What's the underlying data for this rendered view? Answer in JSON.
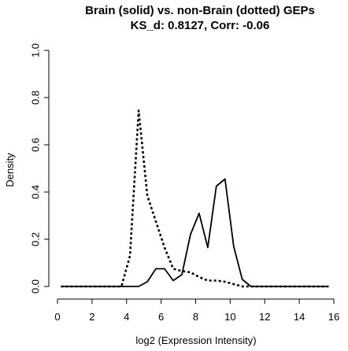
{
  "chart_data": {
    "type": "line",
    "title": "Brain (solid) vs. non-Brain (dotted) GEPs",
    "subtitle": "KS_d: 0.8127, Corr: -0.06",
    "xlabel": "log2 (Expression Intensity)",
    "ylabel": "Density",
    "xlim": [
      0,
      16
    ],
    "ylim": [
      0,
      1.0
    ],
    "x_ticks": [
      0,
      2,
      4,
      6,
      8,
      10,
      12,
      14,
      16
    ],
    "y_ticks": [
      0.0,
      0.2,
      0.4,
      0.6,
      0.8,
      1.0
    ],
    "x_tick_labels": [
      "0",
      "2",
      "4",
      "6",
      "8",
      "10",
      "12",
      "14",
      "16"
    ],
    "y_tick_labels": [
      "0.0",
      "0.2",
      "0.4",
      "0.6",
      "0.8",
      "1.0"
    ],
    "grid": false,
    "legend": null,
    "series": [
      {
        "style": "solid",
        "color": "#000000",
        "x": [
          0.2,
          0.7,
          1.2,
          1.7,
          2.2,
          2.7,
          3.2,
          3.7,
          4.2,
          4.7,
          5.2,
          5.7,
          6.2,
          6.7,
          7.2,
          7.7,
          8.2,
          8.7,
          9.2,
          9.7,
          10.2,
          10.7,
          11.2,
          11.7,
          12.2,
          12.7,
          13.2,
          13.7,
          14.2,
          14.7,
          15.2,
          15.7
        ],
        "y": [
          0.0,
          0.0,
          0.0,
          0.0,
          0.0,
          0.0,
          0.0,
          0.0,
          0.0,
          0.0,
          0.02,
          0.075,
          0.075,
          0.025,
          0.05,
          0.22,
          0.31,
          0.165,
          0.425,
          0.455,
          0.17,
          0.03,
          0.0,
          0.0,
          0.0,
          0.0,
          0.0,
          0.0,
          0.0,
          0.0,
          0.0,
          0.0
        ]
      },
      {
        "style": "dotted",
        "color": "#000000",
        "x": [
          0.2,
          0.7,
          1.2,
          1.7,
          2.2,
          2.7,
          3.2,
          3.7,
          4.2,
          4.7,
          5.2,
          5.7,
          6.2,
          6.7,
          7.2,
          7.7,
          8.2,
          8.7,
          9.2,
          9.7,
          10.2,
          10.7,
          11.2,
          11.7,
          12.2,
          12.7,
          13.2,
          13.7,
          14.2,
          14.7,
          15.2,
          15.7
        ],
        "y": [
          0.0,
          0.0,
          0.0,
          0.0,
          0.0,
          0.0,
          0.0,
          0.0,
          0.13,
          0.745,
          0.385,
          0.275,
          0.165,
          0.075,
          0.065,
          0.06,
          0.04,
          0.025,
          0.025,
          0.02,
          0.01,
          0.0,
          0.0,
          0.0,
          0.0,
          0.0,
          0.0,
          0.0,
          0.0,
          0.0,
          0.0,
          0.0
        ]
      }
    ]
  }
}
